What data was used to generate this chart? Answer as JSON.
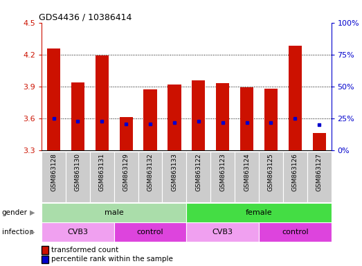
{
  "title": "GDS4436 / 10386414",
  "samples": [
    "GSM863128",
    "GSM863130",
    "GSM863131",
    "GSM863129",
    "GSM863132",
    "GSM863133",
    "GSM863122",
    "GSM863123",
    "GSM863124",
    "GSM863125",
    "GSM863126",
    "GSM863127"
  ],
  "transformed_count": [
    4.26,
    3.94,
    4.19,
    3.61,
    3.87,
    3.92,
    3.96,
    3.93,
    3.89,
    3.88,
    4.28,
    3.46
  ],
  "percentile_rank_val": [
    3.6,
    3.57,
    3.57,
    3.55,
    3.55,
    3.56,
    3.57,
    3.56,
    3.56,
    3.56,
    3.6,
    3.54
  ],
  "ylim": [
    3.3,
    4.5
  ],
  "y2lim": [
    0,
    100
  ],
  "yticks": [
    3.3,
    3.6,
    3.9,
    4.2,
    4.5
  ],
  "y2ticks": [
    0,
    25,
    50,
    75,
    100
  ],
  "gridlines": [
    3.6,
    3.9,
    4.2
  ],
  "bar_color": "#cc1100",
  "percentile_color": "#0000cc",
  "bar_width": 0.55,
  "gender_groups": [
    {
      "label": "male",
      "start": 0,
      "end": 6,
      "color": "#aaeea a"
    },
    {
      "label": "female",
      "start": 6,
      "end": 12,
      "color": "#44dd44"
    }
  ],
  "infection_groups": [
    {
      "label": "CVB3",
      "start": 0,
      "end": 3,
      "color": "#f0a0f0"
    },
    {
      "label": "control",
      "start": 3,
      "end": 6,
      "color": "#dd44dd"
    },
    {
      "label": "CVB3",
      "start": 6,
      "end": 9,
      "color": "#f0a0f0"
    },
    {
      "label": "control",
      "start": 9,
      "end": 12,
      "color": "#dd44dd"
    }
  ],
  "axis_tick_color_left": "#cc1100",
  "axis_tick_color_right": "#0000cc",
  "tick_label_fontsize": 6.5,
  "sample_box_color": "#cccccc",
  "gender_male_color": "#aaddaa",
  "gender_female_color": "#44dd44",
  "infect_cvb3_color": "#f0a0f0",
  "infect_ctrl_color": "#dd44dd"
}
